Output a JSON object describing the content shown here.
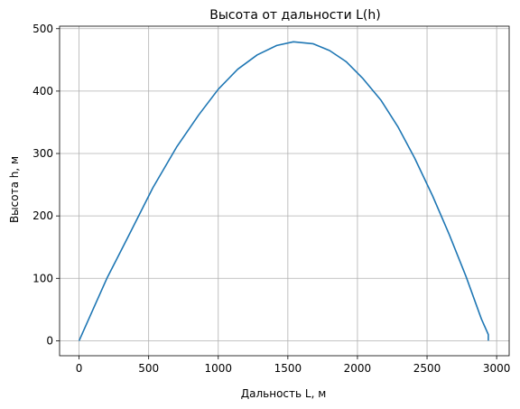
{
  "chart_data": {
    "type": "line",
    "title": "Высота от дальности L(h)",
    "xlabel": "Дальность L, м",
    "ylabel": "Высота h, м",
    "xlim": [
      -140,
      3090
    ],
    "ylim": [
      -24,
      504
    ],
    "xticks": [
      0,
      500,
      1000,
      1500,
      2000,
      2500,
      3000
    ],
    "yticks": [
      0,
      100,
      200,
      300,
      400,
      500
    ],
    "xtick_labels": [
      "0",
      "500",
      "1000",
      "1500",
      "2000",
      "2500",
      "3000"
    ],
    "ytick_labels": [
      "0",
      "100",
      "200",
      "300",
      "400",
      "500"
    ],
    "grid": true,
    "line_color": "#1f77b4",
    "series": [
      {
        "x": [
          0,
          100,
          200,
          360,
          530,
          700,
          860,
          1000,
          1140,
          1280,
          1420,
          1540,
          1680,
          1800,
          1920,
          2040,
          2170,
          2290,
          2410,
          2540,
          2660,
          2780,
          2890,
          2940,
          2940
        ],
        "y": [
          0,
          50,
          100,
          170,
          245,
          310,
          362,
          403,
          435,
          458,
          473,
          479,
          476,
          465,
          447,
          420,
          385,
          343,
          293,
          232,
          170,
          103,
          35,
          10,
          0
        ]
      }
    ]
  }
}
